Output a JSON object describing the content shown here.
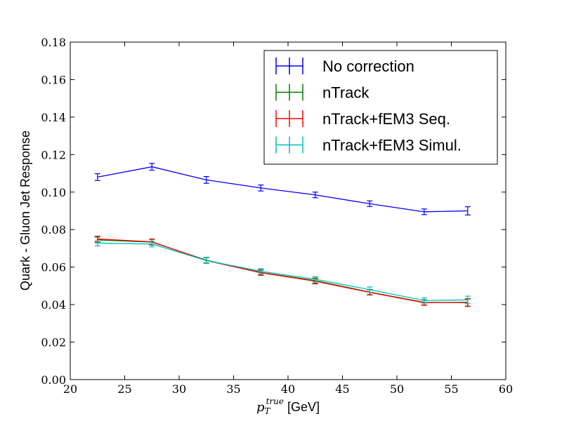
{
  "chart_data": {
    "type": "line",
    "x": [
      22.5,
      27.5,
      32.5,
      37.5,
      42.5,
      47.5,
      52.5,
      56.5
    ],
    "series": [
      {
        "name": "No correction",
        "color": "#0000ff",
        "values": [
          0.108,
          0.1135,
          0.1065,
          0.1022,
          0.0985,
          0.0938,
          0.0895,
          0.09
        ],
        "errors": [
          0.0018,
          0.0018,
          0.0018,
          0.0016,
          0.0015,
          0.0015,
          0.0015,
          0.0022
        ]
      },
      {
        "name": "nTrack",
        "color": "#008000",
        "values": [
          0.0745,
          0.0733,
          0.0637,
          0.0572,
          0.0528,
          0.0467,
          0.0412,
          0.041
        ],
        "errors": [
          0.0015,
          0.0015,
          0.0015,
          0.0014,
          0.0014,
          0.0014,
          0.0014,
          0.002
        ]
      },
      {
        "name": "nTrack+fEM3 Seq.",
        "color": "#ff0000",
        "values": [
          0.075,
          0.0735,
          0.0635,
          0.057,
          0.0525,
          0.0465,
          0.041,
          0.0412
        ],
        "errors": [
          0.0015,
          0.0015,
          0.0015,
          0.0014,
          0.0014,
          0.0014,
          0.0014,
          0.002
        ]
      },
      {
        "name": "nTrack+fEM3 Simul.",
        "color": "#00bfbf",
        "values": [
          0.0728,
          0.0723,
          0.0635,
          0.0578,
          0.0535,
          0.048,
          0.0422,
          0.0425
        ],
        "errors": [
          0.0015,
          0.0015,
          0.0015,
          0.0014,
          0.0014,
          0.0014,
          0.0014,
          0.002
        ]
      }
    ],
    "xlabel_prefix": "p",
    "xlabel_sub": "T",
    "xlabel_sup": "true",
    "xlabel_suffix": " [GeV]",
    "ylabel": "Quark - Gluon Jet Response",
    "xlim": [
      20,
      60
    ],
    "ylim": [
      0.0,
      0.18
    ],
    "xticks": [
      20,
      25,
      30,
      35,
      40,
      45,
      50,
      55,
      60
    ],
    "yticks": [
      0.0,
      0.02,
      0.04,
      0.06,
      0.08,
      0.1,
      0.12,
      0.14,
      0.16,
      0.18
    ],
    "xtick_labels": [
      "20",
      "25",
      "30",
      "35",
      "40",
      "45",
      "50",
      "55",
      "60"
    ],
    "ytick_labels": [
      "0.00",
      "0.02",
      "0.04",
      "0.06",
      "0.08",
      "0.10",
      "0.12",
      "0.14",
      "0.16",
      "0.18"
    ],
    "grid": false,
    "legend_position": "top-right"
  }
}
